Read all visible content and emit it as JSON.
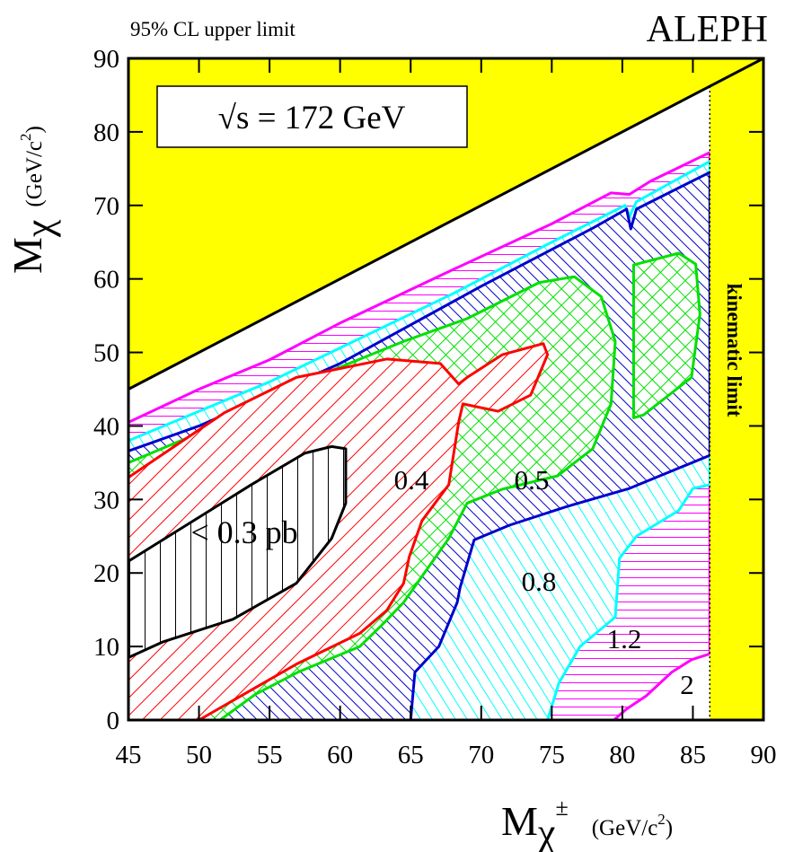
{
  "chart_data": {
    "type": "contour",
    "title": "95% CL upper limit",
    "experiment": "ALEPH",
    "annotation": "√s = 172 GeV",
    "kinematic_label": "kinematic limit",
    "xlabel": {
      "symbol": "M",
      "sub": "χ",
      "sup": "±",
      "unit": "(GeV/c",
      "unit_sup": "2",
      "unit_end": ")"
    },
    "ylabel": {
      "symbol": "M",
      "sub": "χ",
      "unit": "(GeV/c",
      "unit_sup": "2",
      "unit_end": ")"
    },
    "xlim": [
      45,
      90
    ],
    "ylim": [
      0,
      90
    ],
    "xticks": [
      45,
      50,
      55,
      60,
      65,
      70,
      75,
      80,
      85,
      90
    ],
    "yticks": [
      0,
      10,
      20,
      30,
      40,
      50,
      60,
      70,
      80,
      90
    ],
    "excluded_color": "#ffff00",
    "kinematic_limit": 86.2,
    "diagonal": {
      "x": [
        45,
        90
      ],
      "y": [
        45,
        90
      ]
    },
    "regions": [
      {
        "label": "2",
        "color": "#ff00ff",
        "hatch": "horizontal",
        "x": [
          45,
          50,
          55,
          60,
          67.7,
          75,
          79.2,
          80.5,
          82,
          86.2,
          86.2,
          84.9,
          83.5,
          81.7,
          80.3,
          79.4,
          45
        ],
        "y": [
          40.5,
          45,
          49,
          54,
          61,
          67.5,
          71.7,
          71.5,
          73.3,
          77.2,
          9,
          8.2,
          6.5,
          3.3,
          1.5,
          0,
          0
        ]
      },
      {
        "label": "1.2",
        "color": "#00ffff",
        "hatch": "steep",
        "x": [
          45,
          55,
          68,
          75,
          80.2,
          80.5,
          81,
          86.2,
          86.2,
          85,
          84,
          81,
          79.8,
          79.5,
          77,
          75.5,
          74.7,
          45
        ],
        "y": [
          38,
          46,
          58,
          65,
          70,
          68.5,
          70.5,
          76,
          32,
          31.5,
          28.5,
          25,
          22,
          14,
          10,
          5,
          0,
          0
        ]
      },
      {
        "label": "0.8",
        "color": "#0000cc",
        "hatch": "back",
        "x": [
          45,
          50,
          60,
          70,
          78,
          80.3,
          80.6,
          81,
          86.2,
          86.2,
          80.5,
          76,
          72,
          69.5,
          68.5,
          68.3,
          67,
          65.3,
          65,
          45
        ],
        "y": [
          36.6,
          40,
          48.5,
          59,
          67,
          69.5,
          66.8,
          69.5,
          74.5,
          36,
          31.5,
          29,
          26.5,
          24.5,
          18,
          16,
          10,
          6.5,
          0,
          0
        ]
      },
      {
        "label": "0.5",
        "color": "#00e000",
        "hatch": "cross",
        "x": [
          45,
          51.8,
          58.2,
          64.5,
          69,
          74.1,
          76.6,
          78.5,
          79.5,
          79.2,
          77.9,
          75.4,
          71.5,
          69,
          67.7,
          64.5,
          63,
          61.4,
          57,
          54,
          51.5,
          45
        ],
        "y": [
          35,
          40.5,
          46.6,
          51.5,
          54.6,
          59.5,
          60.3,
          57.6,
          51.5,
          43,
          36.9,
          33.2,
          31.4,
          29.5,
          24.7,
          16,
          13,
          10,
          6.5,
          3.5,
          0,
          0
        ]
      },
      {
        "color": "#00e000",
        "hatch": "cross",
        "x": [
          80.8,
          84,
          85.2,
          85.5,
          84.9,
          81.5,
          80.8
        ],
        "y": [
          61.9,
          63.5,
          62,
          55.2,
          46.6,
          41.5,
          41.1
        ]
      },
      {
        "label": "0.4",
        "color": "#ff0000",
        "hatch": "forward",
        "x": [
          45,
          51.8,
          56.9,
          63.3,
          67.1,
          68.4,
          69,
          71.5,
          74.4,
          74.7,
          73.5,
          71.2,
          68.7,
          68.4,
          67.7,
          65.8,
          64.9,
          64.5,
          63.3,
          61.4,
          56.9,
          50,
          45
        ],
        "y": [
          33,
          41.8,
          46.6,
          49.1,
          48.5,
          45.7,
          46.6,
          49.7,
          51.2,
          49.7,
          44.2,
          42,
          43,
          40.5,
          32,
          27.1,
          22.2,
          18.6,
          14.9,
          11.8,
          7.6,
          0,
          0
        ]
      },
      {
        "label": "< 0.3 pb",
        "color": "#000000",
        "hatch": "vertical",
        "x": [
          45,
          48.6,
          53.7,
          57.5,
          59.4,
          60.4,
          60.4,
          59.4,
          56.9,
          52.4,
          47.4,
          45
        ],
        "y": [
          21.6,
          25.9,
          32,
          36.3,
          37.2,
          36.9,
          29.5,
          24.7,
          18.6,
          13.7,
          10.6,
          8.5
        ]
      }
    ]
  }
}
